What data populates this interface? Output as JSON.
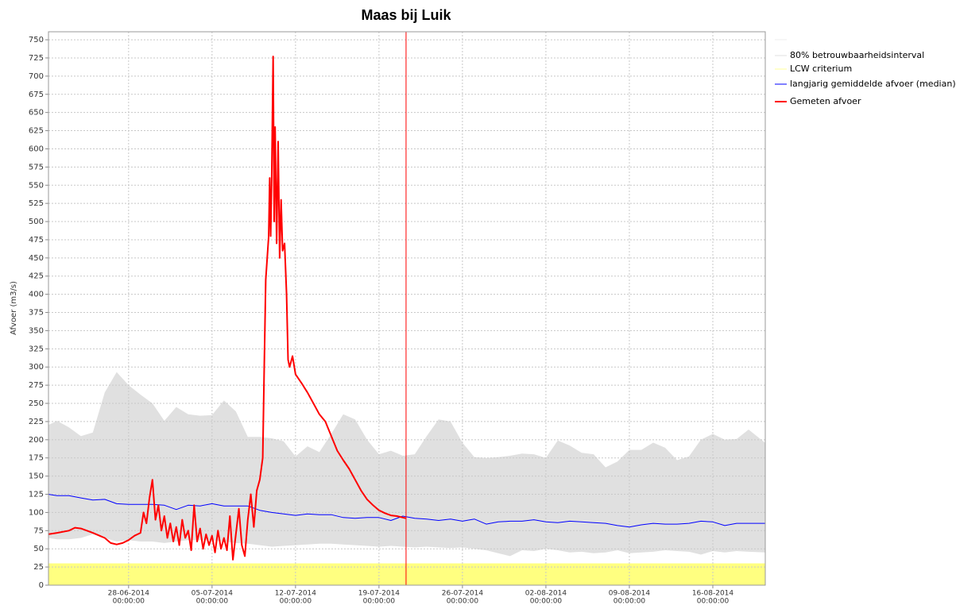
{
  "chart_data": {
    "type": "line",
    "title": "Maas bij Luik",
    "ylabel": "Afvoer (m3/s)",
    "ylim": [
      0,
      761
    ],
    "yticks": [
      0,
      25,
      50,
      75,
      100,
      125,
      150,
      175,
      200,
      225,
      250,
      275,
      300,
      325,
      350,
      375,
      400,
      425,
      450,
      475,
      500,
      525,
      550,
      575,
      600,
      625,
      650,
      675,
      700,
      725,
      750
    ],
    "xlim": [
      "2014-06-21T06:44",
      "2014-08-20T09:36"
    ],
    "xticks": [
      {
        "value": "2014-06-28T00:00",
        "label": [
          "28-06-2014",
          "00:00:00"
        ]
      },
      {
        "value": "2014-07-05T00:00",
        "label": [
          "05-07-2014",
          "00:00:00"
        ]
      },
      {
        "value": "2014-07-12T00:00",
        "label": [
          "12-07-2014",
          "00:00:00"
        ]
      },
      {
        "value": "2014-07-19T00:00",
        "label": [
          "19-07-2014",
          "00:00:00"
        ]
      },
      {
        "value": "2014-07-26T00:00",
        "label": [
          "26-07-2014",
          "00:00:00"
        ]
      },
      {
        "value": "2014-08-02T00:00",
        "label": [
          "02-08-2014",
          "00:00:00"
        ]
      },
      {
        "value": "2014-08-09T00:00",
        "label": [
          "09-08-2014",
          "00:00:00"
        ]
      },
      {
        "value": "2014-08-16T00:00",
        "label": [
          "16-08-2014",
          "00:00:00"
        ]
      }
    ],
    "grid": true,
    "x": [
      "2014-06-21T06:00",
      "2014-06-22T00:00",
      "2014-06-23T00:00",
      "2014-06-24T00:00",
      "2014-06-25T00:00",
      "2014-06-26T00:00",
      "2014-06-27T00:00",
      "2014-06-28T00:00",
      "2014-06-29T00:00",
      "2014-06-30T00:00",
      "2014-07-01T00:00",
      "2014-07-02T00:00",
      "2014-07-03T00:00",
      "2014-07-04T00:00",
      "2014-07-05T00:00",
      "2014-07-06T00:00",
      "2014-07-07T00:00",
      "2014-07-08T00:00",
      "2014-07-09T00:00",
      "2014-07-10T00:00",
      "2014-07-11T00:00",
      "2014-07-12T00:00",
      "2014-07-13T00:00",
      "2014-07-14T00:00",
      "2014-07-15T00:00",
      "2014-07-16T00:00",
      "2014-07-17T00:00",
      "2014-07-18T00:00",
      "2014-07-19T00:00",
      "2014-07-20T00:00",
      "2014-07-21T00:00",
      "2014-07-22T00:00",
      "2014-07-23T00:00",
      "2014-07-24T00:00",
      "2014-07-25T00:00",
      "2014-07-26T00:00",
      "2014-07-27T00:00",
      "2014-07-28T00:00",
      "2014-07-29T00:00",
      "2014-07-30T00:00",
      "2014-07-31T00:00",
      "2014-08-01T00:00",
      "2014-08-02T00:00",
      "2014-08-03T00:00",
      "2014-08-04T00:00",
      "2014-08-05T00:00",
      "2014-08-06T00:00",
      "2014-08-07T00:00",
      "2014-08-08T00:00",
      "2014-08-09T00:00",
      "2014-08-10T00:00",
      "2014-08-11T00:00",
      "2014-08-12T00:00",
      "2014-08-13T00:00",
      "2014-08-14T00:00",
      "2014-08-15T00:00",
      "2014-08-16T00:00",
      "2014-08-17T00:00",
      "2014-08-18T00:00",
      "2014-08-19T00:00",
      "2014-08-20T09:00"
    ],
    "band": {
      "name": "80% betrouwbaarheidsinterval",
      "color": "#e0e0e0",
      "upper": [
        220,
        226,
        217,
        205,
        210,
        265,
        293,
        275,
        262,
        250,
        226,
        245,
        235,
        233,
        234,
        254,
        239,
        204,
        204,
        202,
        198,
        177,
        191,
        183,
        208,
        235,
        228,
        200,
        180,
        185,
        178,
        180,
        205,
        228,
        225,
        196,
        176,
        175,
        176,
        178,
        181,
        180,
        175,
        199,
        192,
        182,
        180,
        162,
        170,
        186,
        186,
        196,
        189,
        172,
        177,
        200,
        208,
        200,
        201,
        214,
        196
      ],
      "lower": [
        65,
        63,
        63,
        65,
        70,
        65,
        60,
        62,
        60,
        60,
        58,
        60,
        62,
        62,
        62,
        60,
        58,
        57,
        55,
        53,
        54,
        55,
        56,
        57,
        57,
        56,
        55,
        54,
        53,
        54,
        53,
        52,
        53,
        52,
        51,
        52,
        50,
        48,
        44,
        40,
        48,
        47,
        50,
        48,
        45,
        46,
        44,
        45,
        48,
        44,
        45,
        46,
        48,
        47,
        46,
        42,
        47,
        45,
        47,
        46,
        45
      ]
    },
    "threshold": {
      "name": "LCW criterium",
      "color": "#ffff80",
      "legend_color": "#ffff99",
      "value": 30
    },
    "series": [
      {
        "name": "langjarig gemiddelde afvoer (median)",
        "color": "#0000ff",
        "width": 1,
        "values": [
          125,
          123,
          123,
          120,
          117,
          118,
          112,
          111,
          111,
          111,
          110,
          104,
          110,
          109,
          112,
          109,
          109,
          109,
          103,
          100,
          98,
          96,
          98,
          97,
          97,
          93,
          92,
          93,
          93,
          89,
          95,
          92,
          91,
          89,
          91,
          88,
          91,
          84,
          87,
          88,
          88,
          90,
          87,
          86,
          88,
          87,
          86,
          85,
          82,
          80,
          83,
          85,
          84,
          84,
          85,
          88,
          87,
          82,
          85,
          85,
          85
        ]
      },
      {
        "name": "Gemeten afvoer",
        "color": "#ff0000",
        "width": 2,
        "x": [
          "2014-06-21T06:00",
          "2014-06-22T00:00",
          "2014-06-23T00:00",
          "2014-06-23T12:00",
          "2014-06-24T00:00",
          "2014-06-25T00:00",
          "2014-06-26T00:00",
          "2014-06-26T12:00",
          "2014-06-27T00:00",
          "2014-06-27T12:00",
          "2014-06-28T00:00",
          "2014-06-28T12:00",
          "2014-06-29T00:00",
          "2014-06-29T06:00",
          "2014-06-29T12:00",
          "2014-06-29T18:00",
          "2014-06-30T00:00",
          "2014-06-30T06:00",
          "2014-06-30T12:00",
          "2014-06-30T18:00",
          "2014-07-01T00:00",
          "2014-07-01T06:00",
          "2014-07-01T12:00",
          "2014-07-01T18:00",
          "2014-07-02T00:00",
          "2014-07-02T06:00",
          "2014-07-02T12:00",
          "2014-07-02T18:00",
          "2014-07-03T00:00",
          "2014-07-03T06:00",
          "2014-07-03T12:00",
          "2014-07-03T18:00",
          "2014-07-04T00:00",
          "2014-07-04T06:00",
          "2014-07-04T12:00",
          "2014-07-04T18:00",
          "2014-07-05T00:00",
          "2014-07-05T06:00",
          "2014-07-05T12:00",
          "2014-07-05T18:00",
          "2014-07-06T00:00",
          "2014-07-06T06:00",
          "2014-07-06T12:00",
          "2014-07-06T18:00",
          "2014-07-07T00:00",
          "2014-07-07T06:00",
          "2014-07-07T12:00",
          "2014-07-07T18:00",
          "2014-07-08T00:00",
          "2014-07-08T06:00",
          "2014-07-08T12:00",
          "2014-07-08T18:00",
          "2014-07-09T00:00",
          "2014-07-09T06:00",
          "2014-07-09T09:00",
          "2014-07-09T12:00",
          "2014-07-09T18:00",
          "2014-07-09T20:00",
          "2014-07-09T22:00",
          "2014-07-10T00:00",
          "2014-07-10T03:00",
          "2014-07-10T05:00",
          "2014-07-10T07:00",
          "2014-07-10T10:00",
          "2014-07-10T13:00",
          "2014-07-10T16:00",
          "2014-07-10T19:00",
          "2014-07-10T22:00",
          "2014-07-11T02:00",
          "2014-07-11T06:00",
          "2014-07-11T09:00",
          "2014-07-11T12:00",
          "2014-07-11T18:00",
          "2014-07-12T00:00",
          "2014-07-12T12:00",
          "2014-07-13T00:00",
          "2014-07-13T12:00",
          "2014-07-14T00:00",
          "2014-07-14T12:00",
          "2014-07-15T00:00",
          "2014-07-15T12:00",
          "2014-07-16T00:00",
          "2014-07-16T12:00",
          "2014-07-17T00:00",
          "2014-07-17T12:00",
          "2014-07-18T00:00",
          "2014-07-18T12:00",
          "2014-07-19T00:00",
          "2014-07-19T12:00",
          "2014-07-20T00:00",
          "2014-07-20T12:00",
          "2014-07-21T00:00",
          "2014-07-21T06:00"
        ],
        "values": [
          70,
          72,
          75,
          79,
          78,
          72,
          65,
          58,
          56,
          58,
          62,
          68,
          72,
          100,
          85,
          120,
          145,
          90,
          110,
          75,
          95,
          65,
          85,
          60,
          80,
          55,
          90,
          65,
          75,
          48,
          110,
          60,
          78,
          50,
          70,
          55,
          68,
          45,
          75,
          50,
          65,
          48,
          95,
          35,
          70,
          105,
          55,
          40,
          90,
          125,
          80,
          130,
          145,
          175,
          300,
          420,
          480,
          560,
          480,
          560,
          727,
          500,
          630,
          470,
          610,
          450,
          530,
          460,
          470,
          400,
          310,
          300,
          315,
          290,
          278,
          265,
          250,
          235,
          225,
          205,
          185,
          172,
          160,
          145,
          130,
          118,
          110,
          103,
          99,
          96,
          95,
          93,
          92
        ]
      }
    ],
    "marker": {
      "x": "2014-07-21T06:30",
      "color": "#ff0000"
    }
  }
}
